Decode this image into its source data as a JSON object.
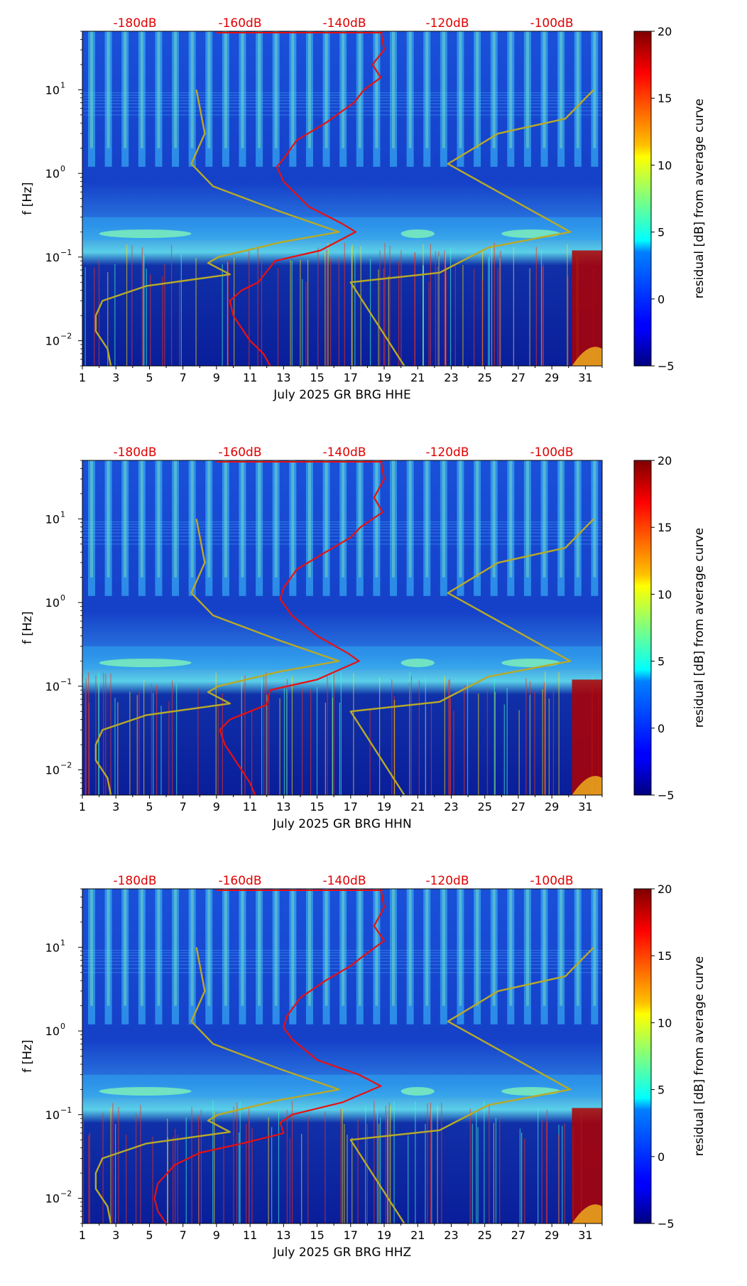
{
  "chart_data": [
    {
      "type": "heatmap",
      "panel": "HHE",
      "xlabel": "July 2025 GR BRG  HHE",
      "ylabel": "f [Hz]",
      "x_ticks": [
        "1",
        "3",
        "5",
        "7",
        "9",
        "11",
        "13",
        "15",
        "17",
        "19",
        "21",
        "23",
        "25",
        "27",
        "29",
        "31"
      ],
      "xlim": [
        1,
        32
      ],
      "y_ticks": [
        {
          "base": "10",
          "exp": "1",
          "value": 10
        },
        {
          "base": "10",
          "exp": "0",
          "value": 1
        },
        {
          "base": "10",
          "exp": "−1",
          "value": 0.1
        },
        {
          "base": "10",
          "exp": "−2",
          "value": 0.01
        }
      ],
      "ylim": [
        0.005,
        50
      ],
      "top_axis_labels": [
        "-180dB",
        "-160dB",
        "-140dB",
        "-120dB",
        "-100dB"
      ],
      "top_axis_color": "#e00000",
      "colorbar": {
        "label": "residual [dB] from average curve",
        "ticks": [
          "20",
          "15",
          "10",
          "5",
          "0",
          "−5"
        ],
        "range": [
          -5,
          20
        ],
        "colormap": "jet"
      },
      "series": [
        {
          "name": "median PSD (red)",
          "color": "#e81010",
          "points": [
            [
              18.8,
              50
            ],
            [
              19,
              30
            ],
            [
              18.3,
              20
            ],
            [
              18.8,
              14
            ],
            [
              17.8,
              10
            ],
            [
              17.2,
              7
            ],
            [
              15.5,
              4
            ],
            [
              13.8,
              2.5
            ],
            [
              13,
              1.5
            ],
            [
              12.6,
              1.2
            ],
            [
              13,
              0.8
            ],
            [
              14.5,
              0.4
            ],
            [
              16.5,
              0.25
            ],
            [
              17.3,
              0.2
            ],
            [
              15.2,
              0.12
            ],
            [
              12.5,
              0.09
            ],
            [
              11.8,
              0.06
            ],
            [
              11.5,
              0.05
            ],
            [
              10.5,
              0.04
            ],
            [
              9.8,
              0.03
            ],
            [
              10,
              0.02
            ],
            [
              11,
              0.01
            ],
            [
              11.8,
              0.007
            ],
            [
              12.2,
              0.005
            ]
          ]
        },
        {
          "name": "noise model (olive)",
          "color": "#b8aa28",
          "points": [
            [
              7.8,
              10
            ],
            [
              8.3,
              3
            ],
            [
              7.5,
              1.3
            ],
            [
              8.8,
              0.7
            ],
            [
              12.8,
              0.35
            ],
            [
              16.3,
              0.2
            ],
            [
              12.8,
              0.15
            ],
            [
              9.1,
              0.1
            ],
            [
              8.5,
              0.085
            ],
            [
              9.8,
              0.062
            ],
            [
              4.8,
              0.045
            ],
            [
              2.2,
              0.03
            ],
            [
              1.8,
              0.02
            ],
            [
              1.8,
              0.013
            ],
            [
              2.5,
              0.008
            ],
            [
              2.7,
              0.005
            ]
          ]
        },
        {
          "name": "noise model (olive)",
          "color": "#b8aa28",
          "points": [
            [
              31.5,
              10
            ],
            [
              29.8,
              4.5
            ],
            [
              25.8,
              3.0
            ],
            [
              22.8,
              1.3
            ],
            [
              30.1,
              0.2
            ],
            [
              25.2,
              0.13
            ],
            [
              22.3,
              0.065
            ],
            [
              17.0,
              0.05
            ],
            [
              20.2,
              0.005
            ]
          ]
        }
      ]
    },
    {
      "type": "heatmap",
      "panel": "HHN",
      "xlabel": "July 2025 GR BRG  HHN",
      "ylabel": "f [Hz]",
      "x_ticks": [
        "1",
        "3",
        "5",
        "7",
        "9",
        "11",
        "13",
        "15",
        "17",
        "19",
        "21",
        "23",
        "25",
        "27",
        "29",
        "31"
      ],
      "xlim": [
        1,
        32
      ],
      "y_ticks": [
        {
          "base": "10",
          "exp": "1",
          "value": 10
        },
        {
          "base": "10",
          "exp": "0",
          "value": 1
        },
        {
          "base": "10",
          "exp": "−1",
          "value": 0.1
        },
        {
          "base": "10",
          "exp": "−2",
          "value": 0.01
        }
      ],
      "ylim": [
        0.005,
        50
      ],
      "top_axis_labels": [
        "-180dB",
        "-160dB",
        "-140dB",
        "-120dB",
        "-100dB"
      ],
      "top_axis_color": "#e00000",
      "colorbar": {
        "label": "residual [dB] from average curve",
        "ticks": [
          "20",
          "15",
          "10",
          "5",
          "0",
          "−5"
        ],
        "range": [
          -5,
          20
        ],
        "colormap": "jet"
      },
      "series": [
        {
          "name": "median PSD (red)",
          "color": "#e81010",
          "points": [
            [
              18.8,
              50
            ],
            [
              19,
              30
            ],
            [
              18.4,
              18
            ],
            [
              18.9,
              12
            ],
            [
              17.6,
              8
            ],
            [
              17,
              6
            ],
            [
              15.5,
              4
            ],
            [
              13.8,
              2.5
            ],
            [
              13,
              1.5
            ],
            [
              12.8,
              1.1
            ],
            [
              13.5,
              0.7
            ],
            [
              15,
              0.4
            ],
            [
              16.8,
              0.25
            ],
            [
              17.5,
              0.2
            ],
            [
              15,
              0.12
            ],
            [
              12.2,
              0.09
            ],
            [
              12,
              0.06
            ],
            [
              11,
              0.05
            ],
            [
              9.8,
              0.04
            ],
            [
              9.2,
              0.03
            ],
            [
              9.5,
              0.02
            ],
            [
              10.5,
              0.01
            ],
            [
              11,
              0.007
            ],
            [
              11.3,
              0.005
            ]
          ]
        },
        {
          "name": "noise model (olive)",
          "color": "#b8aa28",
          "points": [
            [
              7.8,
              10
            ],
            [
              8.3,
              3
            ],
            [
              7.5,
              1.3
            ],
            [
              8.8,
              0.7
            ],
            [
              12.8,
              0.35
            ],
            [
              16.3,
              0.2
            ],
            [
              12.8,
              0.15
            ],
            [
              9.1,
              0.1
            ],
            [
              8.5,
              0.085
            ],
            [
              9.8,
              0.062
            ],
            [
              4.8,
              0.045
            ],
            [
              2.2,
              0.03
            ],
            [
              1.8,
              0.02
            ],
            [
              1.8,
              0.013
            ],
            [
              2.5,
              0.008
            ],
            [
              2.7,
              0.005
            ]
          ]
        },
        {
          "name": "noise model (olive)",
          "color": "#b8aa28",
          "points": [
            [
              31.5,
              10
            ],
            [
              29.8,
              4.5
            ],
            [
              25.8,
              3.0
            ],
            [
              22.8,
              1.3
            ],
            [
              30.1,
              0.2
            ],
            [
              25.2,
              0.13
            ],
            [
              22.3,
              0.065
            ],
            [
              17.0,
              0.05
            ],
            [
              20.2,
              0.005
            ]
          ]
        }
      ]
    },
    {
      "type": "heatmap",
      "panel": "HHZ",
      "xlabel": "July 2025 GR BRG  HHZ",
      "ylabel": "f [Hz]",
      "x_ticks": [
        "1",
        "3",
        "5",
        "7",
        "9",
        "11",
        "13",
        "15",
        "17",
        "19",
        "21",
        "23",
        "25",
        "27",
        "29",
        "31"
      ],
      "xlim": [
        1,
        32
      ],
      "y_ticks": [
        {
          "base": "10",
          "exp": "1",
          "value": 10
        },
        {
          "base": "10",
          "exp": "0",
          "value": 1
        },
        {
          "base": "10",
          "exp": "−1",
          "value": 0.1
        },
        {
          "base": "10",
          "exp": "−2",
          "value": 0.01
        }
      ],
      "ylim": [
        0.005,
        50
      ],
      "top_axis_labels": [
        "-180dB",
        "-160dB",
        "-140dB",
        "-120dB",
        "-100dB"
      ],
      "top_axis_color": "#e00000",
      "colorbar": {
        "label": "residual [dB] from average curve",
        "ticks": [
          "20",
          "15",
          "10",
          "5",
          "0",
          "−5"
        ],
        "range": [
          -5,
          20
        ],
        "colormap": "jet"
      },
      "series": [
        {
          "name": "median PSD (red)",
          "color": "#e81010",
          "points": [
            [
              18.8,
              50
            ],
            [
              19,
              30
            ],
            [
              18.4,
              18
            ],
            [
              19,
              12
            ],
            [
              17.8,
              8
            ],
            [
              17,
              6
            ],
            [
              15.5,
              4
            ],
            [
              14,
              2.5
            ],
            [
              13.2,
              1.5
            ],
            [
              13,
              1.1
            ],
            [
              13.5,
              0.8
            ],
            [
              15,
              0.45
            ],
            [
              17.5,
              0.3
            ],
            [
              18.8,
              0.22
            ],
            [
              16.5,
              0.14
            ],
            [
              13.5,
              0.1
            ],
            [
              12.8,
              0.08
            ],
            [
              13,
              0.06
            ],
            [
              10.5,
              0.045
            ],
            [
              8,
              0.035
            ],
            [
              6.5,
              0.025
            ],
            [
              5.5,
              0.015
            ],
            [
              5.3,
              0.01
            ],
            [
              5.5,
              0.007
            ],
            [
              6,
              0.005
            ]
          ]
        },
        {
          "name": "noise model (olive)",
          "color": "#b8aa28",
          "points": [
            [
              7.8,
              10
            ],
            [
              8.3,
              3
            ],
            [
              7.5,
              1.3
            ],
            [
              8.8,
              0.7
            ],
            [
              12.8,
              0.35
            ],
            [
              16.3,
              0.2
            ],
            [
              12.8,
              0.15
            ],
            [
              9.1,
              0.1
            ],
            [
              8.5,
              0.085
            ],
            [
              9.8,
              0.062
            ],
            [
              4.8,
              0.045
            ],
            [
              2.2,
              0.03
            ],
            [
              1.8,
              0.02
            ],
            [
              1.8,
              0.013
            ],
            [
              2.5,
              0.008
            ],
            [
              2.7,
              0.005
            ]
          ]
        },
        {
          "name": "noise model (olive)",
          "color": "#b8aa28",
          "points": [
            [
              31.5,
              10
            ],
            [
              29.8,
              4.5
            ],
            [
              25.8,
              3.0
            ],
            [
              22.8,
              1.3
            ],
            [
              30.1,
              0.2
            ],
            [
              25.2,
              0.13
            ],
            [
              22.3,
              0.065
            ],
            [
              17.0,
              0.05
            ],
            [
              20.2,
              0.005
            ]
          ]
        }
      ]
    }
  ]
}
